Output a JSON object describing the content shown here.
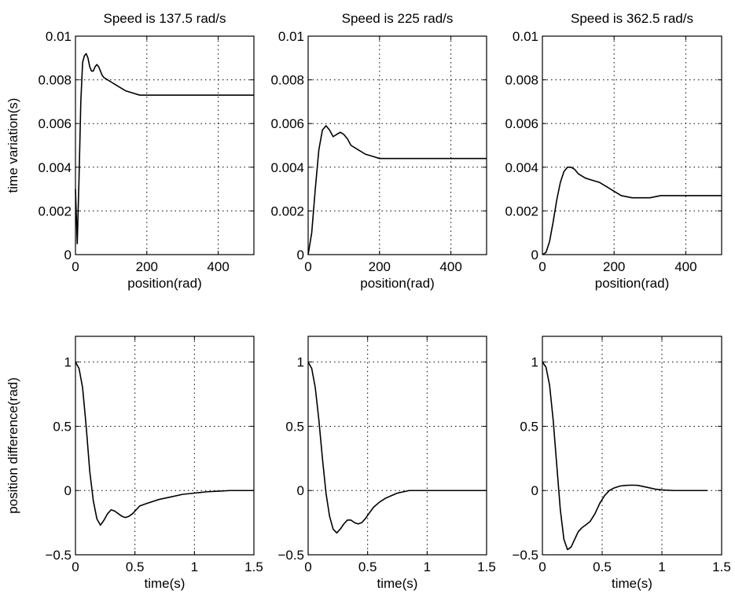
{
  "chart_data": [
    {
      "type": "line",
      "title": "Speed is 137.5 rad/s",
      "xlabel": "position(rad)",
      "ylabel": "time variation(s)",
      "xlim": [
        0,
        500
      ],
      "ylim": [
        0,
        0.01
      ],
      "xticks": [
        0,
        200,
        400
      ],
      "xtick_labels": [
        "0",
        "200",
        "400"
      ],
      "yticks": [
        0,
        0.002,
        0.004,
        0.006,
        0.008,
        0.01
      ],
      "ytick_labels": [
        "0",
        "0.002",
        "0.004",
        "0.006",
        "0.008",
        "0.01"
      ],
      "grid": true,
      "series": [
        {
          "x": [
            0,
            5,
            10,
            15,
            20,
            25,
            30,
            35,
            40,
            45,
            50,
            55,
            60,
            65,
            70,
            75,
            80,
            90,
            100,
            110,
            120,
            130,
            140,
            160,
            180,
            200,
            250,
            300,
            350,
            400,
            450,
            500
          ],
          "y": [
            0.003,
            0.0005,
            0.0035,
            0.007,
            0.0088,
            0.0091,
            0.0092,
            0.009,
            0.0086,
            0.0084,
            0.0084,
            0.0086,
            0.0087,
            0.0086,
            0.0084,
            0.0082,
            0.0081,
            0.008,
            0.0079,
            0.0078,
            0.0077,
            0.0076,
            0.0075,
            0.0074,
            0.0073,
            0.0073,
            0.0073,
            0.0073,
            0.0073,
            0.0073,
            0.0073,
            0.0073
          ]
        }
      ]
    },
    {
      "type": "line",
      "title": "Speed is 225 rad/s",
      "xlabel": "position(rad)",
      "ylabel": "",
      "xlim": [
        0,
        500
      ],
      "ylim": [
        0,
        0.01
      ],
      "xticks": [
        0,
        200,
        400
      ],
      "xtick_labels": [
        "0",
        "200",
        "400"
      ],
      "yticks": [
        0,
        0.002,
        0.004,
        0.006,
        0.008,
        0.01
      ],
      "ytick_labels": [
        "0",
        "0.002",
        "0.004",
        "0.006",
        "0.008",
        "0.01"
      ],
      "grid": true,
      "series": [
        {
          "x": [
            0,
            10,
            20,
            30,
            40,
            50,
            60,
            70,
            80,
            90,
            100,
            110,
            120,
            140,
            160,
            180,
            200,
            250,
            300,
            400,
            500
          ],
          "y": [
            0,
            0.001,
            0.003,
            0.0048,
            0.0057,
            0.0059,
            0.0057,
            0.0054,
            0.0055,
            0.0056,
            0.0055,
            0.0053,
            0.005,
            0.0048,
            0.0046,
            0.0045,
            0.0044,
            0.0044,
            0.0044,
            0.0044,
            0.0044
          ]
        }
      ]
    },
    {
      "type": "line",
      "title": "Speed is 362.5 rad/s",
      "xlabel": "position(rad)",
      "ylabel": "",
      "xlim": [
        0,
        500
      ],
      "ylim": [
        0,
        0.01
      ],
      "xticks": [
        0,
        200,
        400
      ],
      "xtick_labels": [
        "0",
        "200",
        "400"
      ],
      "yticks": [
        0,
        0.002,
        0.004,
        0.006,
        0.008,
        0.01
      ],
      "ytick_labels": [
        "0",
        "0.002",
        "0.004",
        "0.006",
        "0.008",
        "0.01"
      ],
      "grid": true,
      "series": [
        {
          "x": [
            0,
            10,
            20,
            30,
            40,
            50,
            60,
            70,
            80,
            90,
            100,
            120,
            140,
            160,
            180,
            200,
            220,
            250,
            280,
            300,
            330,
            360,
            400,
            450,
            500
          ],
          "y": [
            0,
            0.0001,
            0.0006,
            0.0015,
            0.0025,
            0.0033,
            0.0038,
            0.004,
            0.004,
            0.0039,
            0.0037,
            0.0035,
            0.0034,
            0.0033,
            0.0031,
            0.0029,
            0.0027,
            0.0026,
            0.0026,
            0.0026,
            0.0027,
            0.0027,
            0.0027,
            0.0027,
            0.0027
          ]
        }
      ]
    },
    {
      "type": "line",
      "title": "",
      "xlabel": "time(s)",
      "ylabel": "position difference(rad)",
      "xlim": [
        0,
        1.5
      ],
      "ylim": [
        -0.5,
        1.2
      ],
      "xticks": [
        0,
        0.5,
        1,
        1.5
      ],
      "xtick_labels": [
        "0",
        "0.5",
        "1",
        "1.5"
      ],
      "yticks": [
        -0.5,
        0,
        0.5,
        1
      ],
      "ytick_labels": [
        "−0.5",
        "0",
        "0.5",
        "1"
      ],
      "grid": true,
      "series": [
        {
          "x": [
            0,
            0.03,
            0.06,
            0.09,
            0.12,
            0.15,
            0.18,
            0.21,
            0.24,
            0.27,
            0.3,
            0.33,
            0.36,
            0.39,
            0.42,
            0.45,
            0.48,
            0.51,
            0.54,
            0.57,
            0.6,
            0.7,
            0.8,
            0.9,
            1.0,
            1.1,
            1.2,
            1.3,
            1.4,
            1.5
          ],
          "y": [
            1.0,
            0.95,
            0.8,
            0.5,
            0.15,
            -0.08,
            -0.22,
            -0.27,
            -0.23,
            -0.18,
            -0.15,
            -0.16,
            -0.18,
            -0.2,
            -0.21,
            -0.2,
            -0.18,
            -0.15,
            -0.12,
            -0.11,
            -0.1,
            -0.07,
            -0.05,
            -0.03,
            -0.02,
            -0.01,
            -0.005,
            0,
            0,
            0
          ]
        }
      ]
    },
    {
      "type": "line",
      "title": "",
      "xlabel": "time(s)",
      "ylabel": "",
      "xlim": [
        0,
        1.5
      ],
      "ylim": [
        -0.5,
        1.2
      ],
      "xticks": [
        0,
        0.5,
        1,
        1.5
      ],
      "xtick_labels": [
        "0",
        "0.5",
        "1",
        "1.5"
      ],
      "yticks": [
        -0.5,
        0,
        0.5,
        1
      ],
      "ytick_labels": [
        "−0.5",
        "0",
        "0.5",
        "1"
      ],
      "grid": true,
      "series": [
        {
          "x": [
            0,
            0.03,
            0.06,
            0.09,
            0.12,
            0.15,
            0.18,
            0.21,
            0.24,
            0.27,
            0.3,
            0.33,
            0.36,
            0.39,
            0.42,
            0.45,
            0.48,
            0.51,
            0.55,
            0.6,
            0.65,
            0.7,
            0.75,
            0.8,
            0.85,
            0.9,
            1.0,
            1.1,
            1.2,
            1.3,
            1.4,
            1.5
          ],
          "y": [
            1.0,
            0.95,
            0.8,
            0.55,
            0.25,
            -0.02,
            -0.2,
            -0.3,
            -0.33,
            -0.3,
            -0.26,
            -0.23,
            -0.23,
            -0.25,
            -0.26,
            -0.25,
            -0.22,
            -0.18,
            -0.13,
            -0.09,
            -0.06,
            -0.04,
            -0.02,
            -0.01,
            0,
            0,
            0,
            0,
            0,
            0,
            0,
            0
          ]
        }
      ]
    },
    {
      "type": "line",
      "title": "",
      "xlabel": "time(s)",
      "ylabel": "",
      "xlim": [
        0,
        1.5
      ],
      "ylim": [
        -0.5,
        1.2
      ],
      "xticks": [
        0,
        0.5,
        1,
        1.5
      ],
      "xtick_labels": [
        "0",
        "0.5",
        "1",
        "1.5"
      ],
      "yticks": [
        -0.5,
        0,
        0.5,
        1
      ],
      "ytick_labels": [
        "−0.5",
        "0",
        "0.5",
        "1"
      ],
      "grid": true,
      "series": [
        {
          "x": [
            0,
            0.03,
            0.06,
            0.09,
            0.12,
            0.15,
            0.18,
            0.21,
            0.24,
            0.27,
            0.3,
            0.33,
            0.36,
            0.4,
            0.44,
            0.48,
            0.52,
            0.56,
            0.6,
            0.65,
            0.7,
            0.75,
            0.8,
            0.85,
            0.9,
            0.95,
            1.0,
            1.1,
            1.2,
            1.3,
            1.38
          ],
          "y": [
            1.0,
            0.96,
            0.82,
            0.55,
            0.2,
            -0.15,
            -0.38,
            -0.46,
            -0.44,
            -0.38,
            -0.32,
            -0.29,
            -0.27,
            -0.24,
            -0.18,
            -0.1,
            -0.04,
            0.0,
            0.02,
            0.035,
            0.04,
            0.042,
            0.04,
            0.03,
            0.02,
            0.01,
            0.005,
            0,
            0,
            0,
            0
          ]
        }
      ]
    }
  ]
}
